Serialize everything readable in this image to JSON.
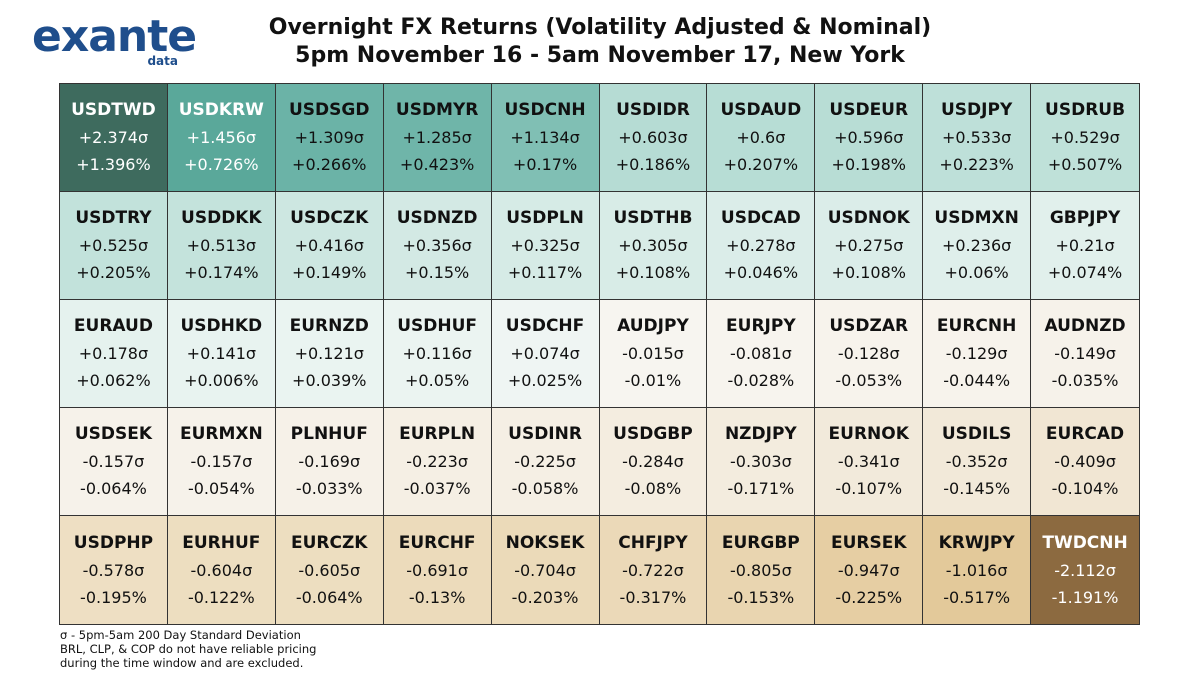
{
  "brand": {
    "name": "exante",
    "sub": "data"
  },
  "title_line1": "Overnight FX Returns (Volatility Adjusted & Nominal)",
  "title_line2": "5pm November 16 - 5am November 17, New York",
  "footnote": [
    "σ - 5pm-5am 200 Day Standard Deviation",
    "BRL, CLP, & COP do not have reliable pricing",
    "during the time window and are excluded."
  ],
  "chart_data": {
    "type": "heatmap",
    "columns": 10,
    "rows": 5,
    "cells": [
      {
        "pair": "USDTWD",
        "sigma": "+2.374σ",
        "pct": "+1.396%",
        "bg": "#3e6b5e",
        "fg": "#ffffff"
      },
      {
        "pair": "USDKRW",
        "sigma": "+1.456σ",
        "pct": "+0.726%",
        "bg": "#5aa89a",
        "fg": "#ffffff"
      },
      {
        "pair": "USDSGD",
        "sigma": "+1.309σ",
        "pct": "+0.266%",
        "bg": "#6bb3a7",
        "fg": "#111111"
      },
      {
        "pair": "USDMYR",
        "sigma": "+1.285σ",
        "pct": "+0.423%",
        "bg": "#6fb5a9",
        "fg": "#111111"
      },
      {
        "pair": "USDCNH",
        "sigma": "+1.134σ",
        "pct": "+0.17%",
        "bg": "#80bfb4",
        "fg": "#111111"
      },
      {
        "pair": "USDIDR",
        "sigma": "+0.603σ",
        "pct": "+0.186%",
        "bg": "#b6dcd4",
        "fg": "#111111"
      },
      {
        "pair": "USDAUD",
        "sigma": "+0.6σ",
        "pct": "+0.207%",
        "bg": "#b7ddd5",
        "fg": "#111111"
      },
      {
        "pair": "USDEUR",
        "sigma": "+0.596σ",
        "pct": "+0.198%",
        "bg": "#b8ddd5",
        "fg": "#111111"
      },
      {
        "pair": "USDJPY",
        "sigma": "+0.533σ",
        "pct": "+0.223%",
        "bg": "#bee0d9",
        "fg": "#111111"
      },
      {
        "pair": "USDRUB",
        "sigma": "+0.529σ",
        "pct": "+0.507%",
        "bg": "#bfe1d9",
        "fg": "#111111"
      },
      {
        "pair": "USDTRY",
        "sigma": "+0.525σ",
        "pct": "+0.205%",
        "bg": "#c2e2db",
        "fg": "#111111"
      },
      {
        "pair": "USDDKK",
        "sigma": "+0.513σ",
        "pct": "+0.174%",
        "bg": "#c4e3dc",
        "fg": "#111111"
      },
      {
        "pair": "USDCZK",
        "sigma": "+0.416σ",
        "pct": "+0.149%",
        "bg": "#cde7e1",
        "fg": "#111111"
      },
      {
        "pair": "USDNZD",
        "sigma": "+0.356σ",
        "pct": "+0.15%",
        "bg": "#d3e9e4",
        "fg": "#111111"
      },
      {
        "pair": "USDPLN",
        "sigma": "+0.325σ",
        "pct": "+0.117%",
        "bg": "#d6ebe6",
        "fg": "#111111"
      },
      {
        "pair": "USDTHB",
        "sigma": "+0.305σ",
        "pct": "+0.108%",
        "bg": "#d8ece7",
        "fg": "#111111"
      },
      {
        "pair": "USDCAD",
        "sigma": "+0.278σ",
        "pct": "+0.046%",
        "bg": "#dbede9",
        "fg": "#111111"
      },
      {
        "pair": "USDNOK",
        "sigma": "+0.275σ",
        "pct": "+0.108%",
        "bg": "#dbede9",
        "fg": "#111111"
      },
      {
        "pair": "USDMXN",
        "sigma": "+0.236σ",
        "pct": "+0.06%",
        "bg": "#dfefeb",
        "fg": "#111111"
      },
      {
        "pair": "GBPJPY",
        "sigma": "+0.21σ",
        "pct": "+0.074%",
        "bg": "#e1f0ec",
        "fg": "#111111"
      },
      {
        "pair": "EURAUD",
        "sigma": "+0.178σ",
        "pct": "+0.062%",
        "bg": "#e5f2ee",
        "fg": "#111111"
      },
      {
        "pair": "USDHKD",
        "sigma": "+0.141σ",
        "pct": "+0.006%",
        "bg": "#e8f3f0",
        "fg": "#111111"
      },
      {
        "pair": "EURNZD",
        "sigma": "+0.121σ",
        "pct": "+0.039%",
        "bg": "#eaf4f1",
        "fg": "#111111"
      },
      {
        "pair": "USDHUF",
        "sigma": "+0.116σ",
        "pct": "+0.05%",
        "bg": "#ebf4f1",
        "fg": "#111111"
      },
      {
        "pair": "USDCHF",
        "sigma": "+0.074σ",
        "pct": "+0.025%",
        "bg": "#eff5f3",
        "fg": "#111111"
      },
      {
        "pair": "AUDJPY",
        "sigma": "-0.015σ",
        "pct": "-0.01%",
        "bg": "#f7f5f0",
        "fg": "#111111"
      },
      {
        "pair": "EURJPY",
        "sigma": "-0.081σ",
        "pct": "-0.028%",
        "bg": "#f7f4ee",
        "fg": "#111111"
      },
      {
        "pair": "USDZAR",
        "sigma": "-0.128σ",
        "pct": "-0.053%",
        "bg": "#f7f3ec",
        "fg": "#111111"
      },
      {
        "pair": "EURCNH",
        "sigma": "-0.129σ",
        "pct": "-0.044%",
        "bg": "#f7f3ec",
        "fg": "#111111"
      },
      {
        "pair": "AUDNZD",
        "sigma": "-0.149σ",
        "pct": "-0.035%",
        "bg": "#f6f2ea",
        "fg": "#111111"
      },
      {
        "pair": "USDSEK",
        "sigma": "-0.157σ",
        "pct": "-0.064%",
        "bg": "#f6f2ea",
        "fg": "#111111"
      },
      {
        "pair": "EURMXN",
        "sigma": "-0.157σ",
        "pct": "-0.054%",
        "bg": "#f6f2ea",
        "fg": "#111111"
      },
      {
        "pair": "PLNHUF",
        "sigma": "-0.169σ",
        "pct": "-0.033%",
        "bg": "#f6f1e8",
        "fg": "#111111"
      },
      {
        "pair": "EURPLN",
        "sigma": "-0.223σ",
        "pct": "-0.037%",
        "bg": "#f5efe4",
        "fg": "#111111"
      },
      {
        "pair": "USDINR",
        "sigma": "-0.225σ",
        "pct": "-0.058%",
        "bg": "#f5efe4",
        "fg": "#111111"
      },
      {
        "pair": "USDGBP",
        "sigma": "-0.284σ",
        "pct": "-0.08%",
        "bg": "#f4ede0",
        "fg": "#111111"
      },
      {
        "pair": "NZDJPY",
        "sigma": "-0.303σ",
        "pct": "-0.171%",
        "bg": "#f3ecde",
        "fg": "#111111"
      },
      {
        "pair": "EURNOK",
        "sigma": "-0.341σ",
        "pct": "-0.107%",
        "bg": "#f2eadb",
        "fg": "#111111"
      },
      {
        "pair": "USDILS",
        "sigma": "-0.352σ",
        "pct": "-0.145%",
        "bg": "#f2e9d9",
        "fg": "#111111"
      },
      {
        "pair": "EURCAD",
        "sigma": "-0.409σ",
        "pct": "-0.104%",
        "bg": "#f1e6d3",
        "fg": "#111111"
      },
      {
        "pair": "USDPHP",
        "sigma": "-0.578σ",
        "pct": "-0.195%",
        "bg": "#eedfc3",
        "fg": "#111111"
      },
      {
        "pair": "EURHUF",
        "sigma": "-0.604σ",
        "pct": "-0.122%",
        "bg": "#eddec0",
        "fg": "#111111"
      },
      {
        "pair": "EURCZK",
        "sigma": "-0.605σ",
        "pct": "-0.064%",
        "bg": "#eddec0",
        "fg": "#111111"
      },
      {
        "pair": "EURCHF",
        "sigma": "-0.691σ",
        "pct": "-0.13%",
        "bg": "#ecdbbb",
        "fg": "#111111"
      },
      {
        "pair": "NOKSEK",
        "sigma": "-0.704σ",
        "pct": "-0.203%",
        "bg": "#ebdab9",
        "fg": "#111111"
      },
      {
        "pair": "CHFJPY",
        "sigma": "-0.722σ",
        "pct": "-0.317%",
        "bg": "#ebd9b8",
        "fg": "#111111"
      },
      {
        "pair": "EURGBP",
        "sigma": "-0.805σ",
        "pct": "-0.153%",
        "bg": "#e9d5b0",
        "fg": "#111111"
      },
      {
        "pair": "EURSEK",
        "sigma": "-0.947σ",
        "pct": "-0.225%",
        "bg": "#e6cea3",
        "fg": "#111111"
      },
      {
        "pair": "KRWJPY",
        "sigma": "-1.016σ",
        "pct": "-0.517%",
        "bg": "#e3c99a",
        "fg": "#111111"
      },
      {
        "pair": "TWDCNH",
        "sigma": "-2.112σ",
        "pct": "-1.191%",
        "bg": "#8c6a40",
        "fg": "#ffffff"
      }
    ]
  }
}
